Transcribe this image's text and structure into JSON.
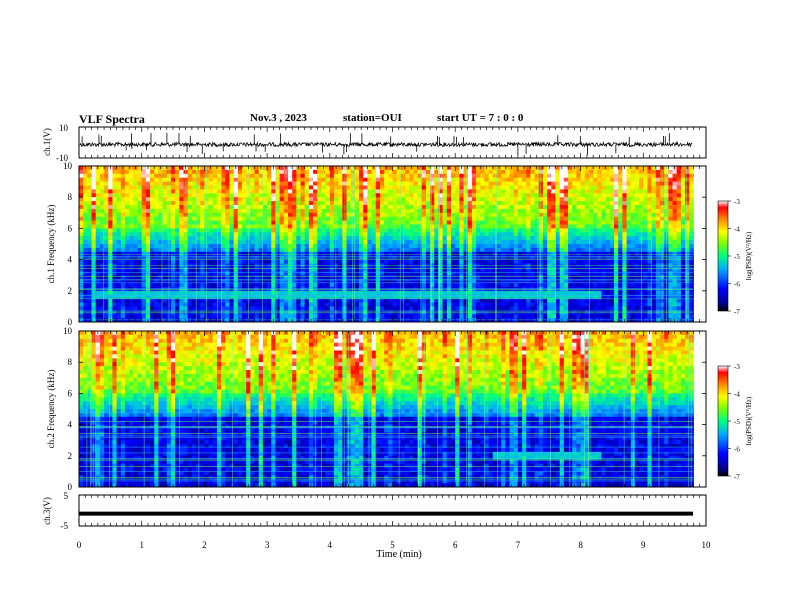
{
  "header": {
    "title": "VLF Spectra",
    "date": "Nov.3 , 2023",
    "station": "station=OUI",
    "start_ut": "start UT = 7 : 0 : 0"
  },
  "chart_data": [
    {
      "type": "line",
      "panel": "ch1-waveform",
      "ylabel": "ch.1(V)",
      "ylim": [
        -10,
        10
      ],
      "yticks": [
        "10",
        "-10"
      ],
      "note_baseline_value": 0,
      "colors": {
        "trace": "#000000"
      }
    },
    {
      "type": "heatmap",
      "panel": "ch1-spectrogram",
      "ylabel": "ch.1 Frequency (kHz)",
      "ylim": [
        0,
        10
      ],
      "yticks": [
        0,
        2,
        4,
        6,
        8,
        10
      ],
      "xlim": [
        0,
        10
      ],
      "colorbar": {
        "label": "log(PSD)(V²/Hz)",
        "range": [
          -7,
          -3
        ],
        "ticks": [
          "-3",
          "-4",
          "-5",
          "-6",
          "-7"
        ]
      },
      "features": {
        "noise_band_khz": [
          1.4,
          1.9
        ],
        "noise_band_end_min": 8.3
      }
    },
    {
      "type": "heatmap",
      "panel": "ch2-spectrogram",
      "ylabel": "ch.2 Frequency (kHz)",
      "ylim": [
        0,
        10
      ],
      "yticks": [
        0,
        2,
        4,
        6,
        8,
        10
      ],
      "xlim": [
        0,
        10
      ],
      "colorbar": {
        "label": "log(PSD)(V²/Hz)",
        "range": [
          -7,
          -3
        ],
        "ticks": [
          "-3",
          "-4",
          "-5",
          "-6",
          "-7"
        ]
      },
      "features": {
        "noise_band_khz": [
          1.7,
          2.2
        ],
        "noise_band_start_min": 6.6,
        "noise_band_end_min": 8.3
      }
    },
    {
      "type": "line",
      "panel": "ch3-waveform",
      "ylabel": "ch.3(V)",
      "ylim": [
        -5,
        5
      ],
      "yticks": [
        "5",
        "-5"
      ],
      "constant_value": -1,
      "xlabel": "Time (min)",
      "xlim": [
        0,
        10
      ],
      "xticks": [
        "0",
        "1",
        "2",
        "3",
        "4",
        "5",
        "6",
        "7",
        "8",
        "9",
        "10"
      ]
    }
  ]
}
